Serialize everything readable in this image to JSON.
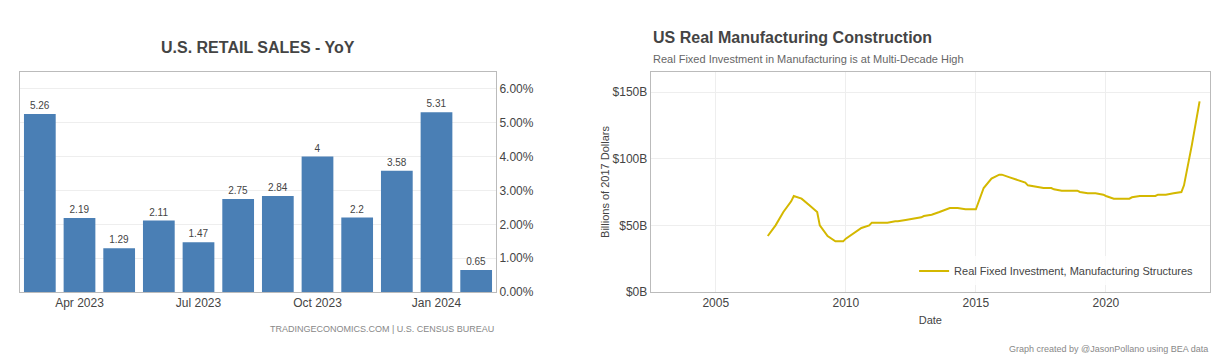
{
  "chart_data": [
    {
      "type": "bar",
      "title": "U.S. RETAIL SALES - YoY",
      "categories": [
        null,
        "Apr 2023",
        null,
        null,
        "Jul 2023",
        null,
        null,
        "Oct 2023",
        null,
        null,
        "Jan 2024",
        null
      ],
      "values": [
        5.26,
        2.19,
        1.29,
        2.11,
        1.47,
        2.75,
        2.84,
        4.0,
        2.2,
        3.58,
        5.31,
        0.65
      ],
      "color": "#4a7fb5",
      "data_labels": true,
      "ylim": [
        0,
        6.5
      ],
      "yticks": [
        {
          "value": 0.0,
          "label": "0.00%"
        },
        {
          "value": 1.0,
          "label": "1.00%"
        },
        {
          "value": 2.0,
          "label": "2.00%"
        },
        {
          "value": 3.0,
          "label": "3.00%"
        },
        {
          "value": 4.0,
          "label": "4.00%"
        },
        {
          "value": 5.0,
          "label": "5.00%"
        },
        {
          "value": 6.0,
          "label": "6.00%"
        }
      ],
      "grid": true,
      "annotations": [
        "TRADINGECONOMICS.COM | U.S. CENSUS BUREAU"
      ]
    },
    {
      "type": "line",
      "title": "US Real Manufacturing Construction",
      "subtitle": "Real Fixed Investment in Manufacturing is at Multi-Decade High",
      "x": [
        2007.0,
        2007.3,
        2007.6,
        2007.9,
        2008.0,
        2008.3,
        2008.6,
        2008.9,
        2009.0,
        2009.3,
        2009.6,
        2009.9,
        2010.0,
        2010.3,
        2010.6,
        2010.9,
        2011.0,
        2011.3,
        2011.6,
        2011.9,
        2012.0,
        2012.3,
        2012.6,
        2012.9,
        2013.0,
        2013.3,
        2013.6,
        2013.9,
        2014.0,
        2014.3,
        2014.6,
        2014.9,
        2015.0,
        2015.3,
        2015.6,
        2015.9,
        2016.0,
        2016.3,
        2016.6,
        2016.9,
        2017.0,
        2017.3,
        2017.6,
        2017.9,
        2018.0,
        2018.3,
        2018.6,
        2018.9,
        2019.0,
        2019.3,
        2019.6,
        2019.9,
        2020.0,
        2020.3,
        2020.6,
        2020.9,
        2021.0,
        2021.3,
        2021.6,
        2021.9,
        2022.0,
        2022.3,
        2022.6,
        2022.9,
        2023.0,
        2023.3,
        2023.6
      ],
      "series": [
        {
          "name": "Real Fixed Investment, Manufacturing Structures",
          "color": "#d4b800",
          "values": [
            42,
            50,
            60,
            68,
            72,
            70,
            65,
            60,
            50,
            42,
            38,
            38,
            40,
            44,
            48,
            50,
            52,
            52,
            52,
            53,
            53,
            54,
            55,
            56,
            57,
            58,
            60,
            62,
            63,
            63,
            62,
            62,
            62,
            78,
            85,
            88,
            88,
            86,
            84,
            82,
            80,
            79,
            78,
            78,
            77,
            76,
            76,
            76,
            75,
            74,
            74,
            73,
            72,
            70,
            70,
            70,
            71,
            72,
            72,
            72,
            73,
            73,
            74,
            75,
            80,
            110,
            143
          ]
        }
      ],
      "xlabel": "Date",
      "ylabel": "Billions of 2017 Dollars",
      "xlim": [
        2002.5,
        2024.0
      ],
      "xticks": [
        2005,
        2010,
        2015,
        2020
      ],
      "ylim": [
        0,
        165
      ],
      "yticks": [
        {
          "value": 0,
          "label": "$0B"
        },
        {
          "value": 50,
          "label": "$50B"
        },
        {
          "value": 100,
          "label": "$100B"
        },
        {
          "value": 150,
          "label": "$150B"
        }
      ],
      "grid": true,
      "legend": "lower right",
      "annotations": [
        "Graph created by @JasonPollano using BEA data"
      ]
    }
  ]
}
